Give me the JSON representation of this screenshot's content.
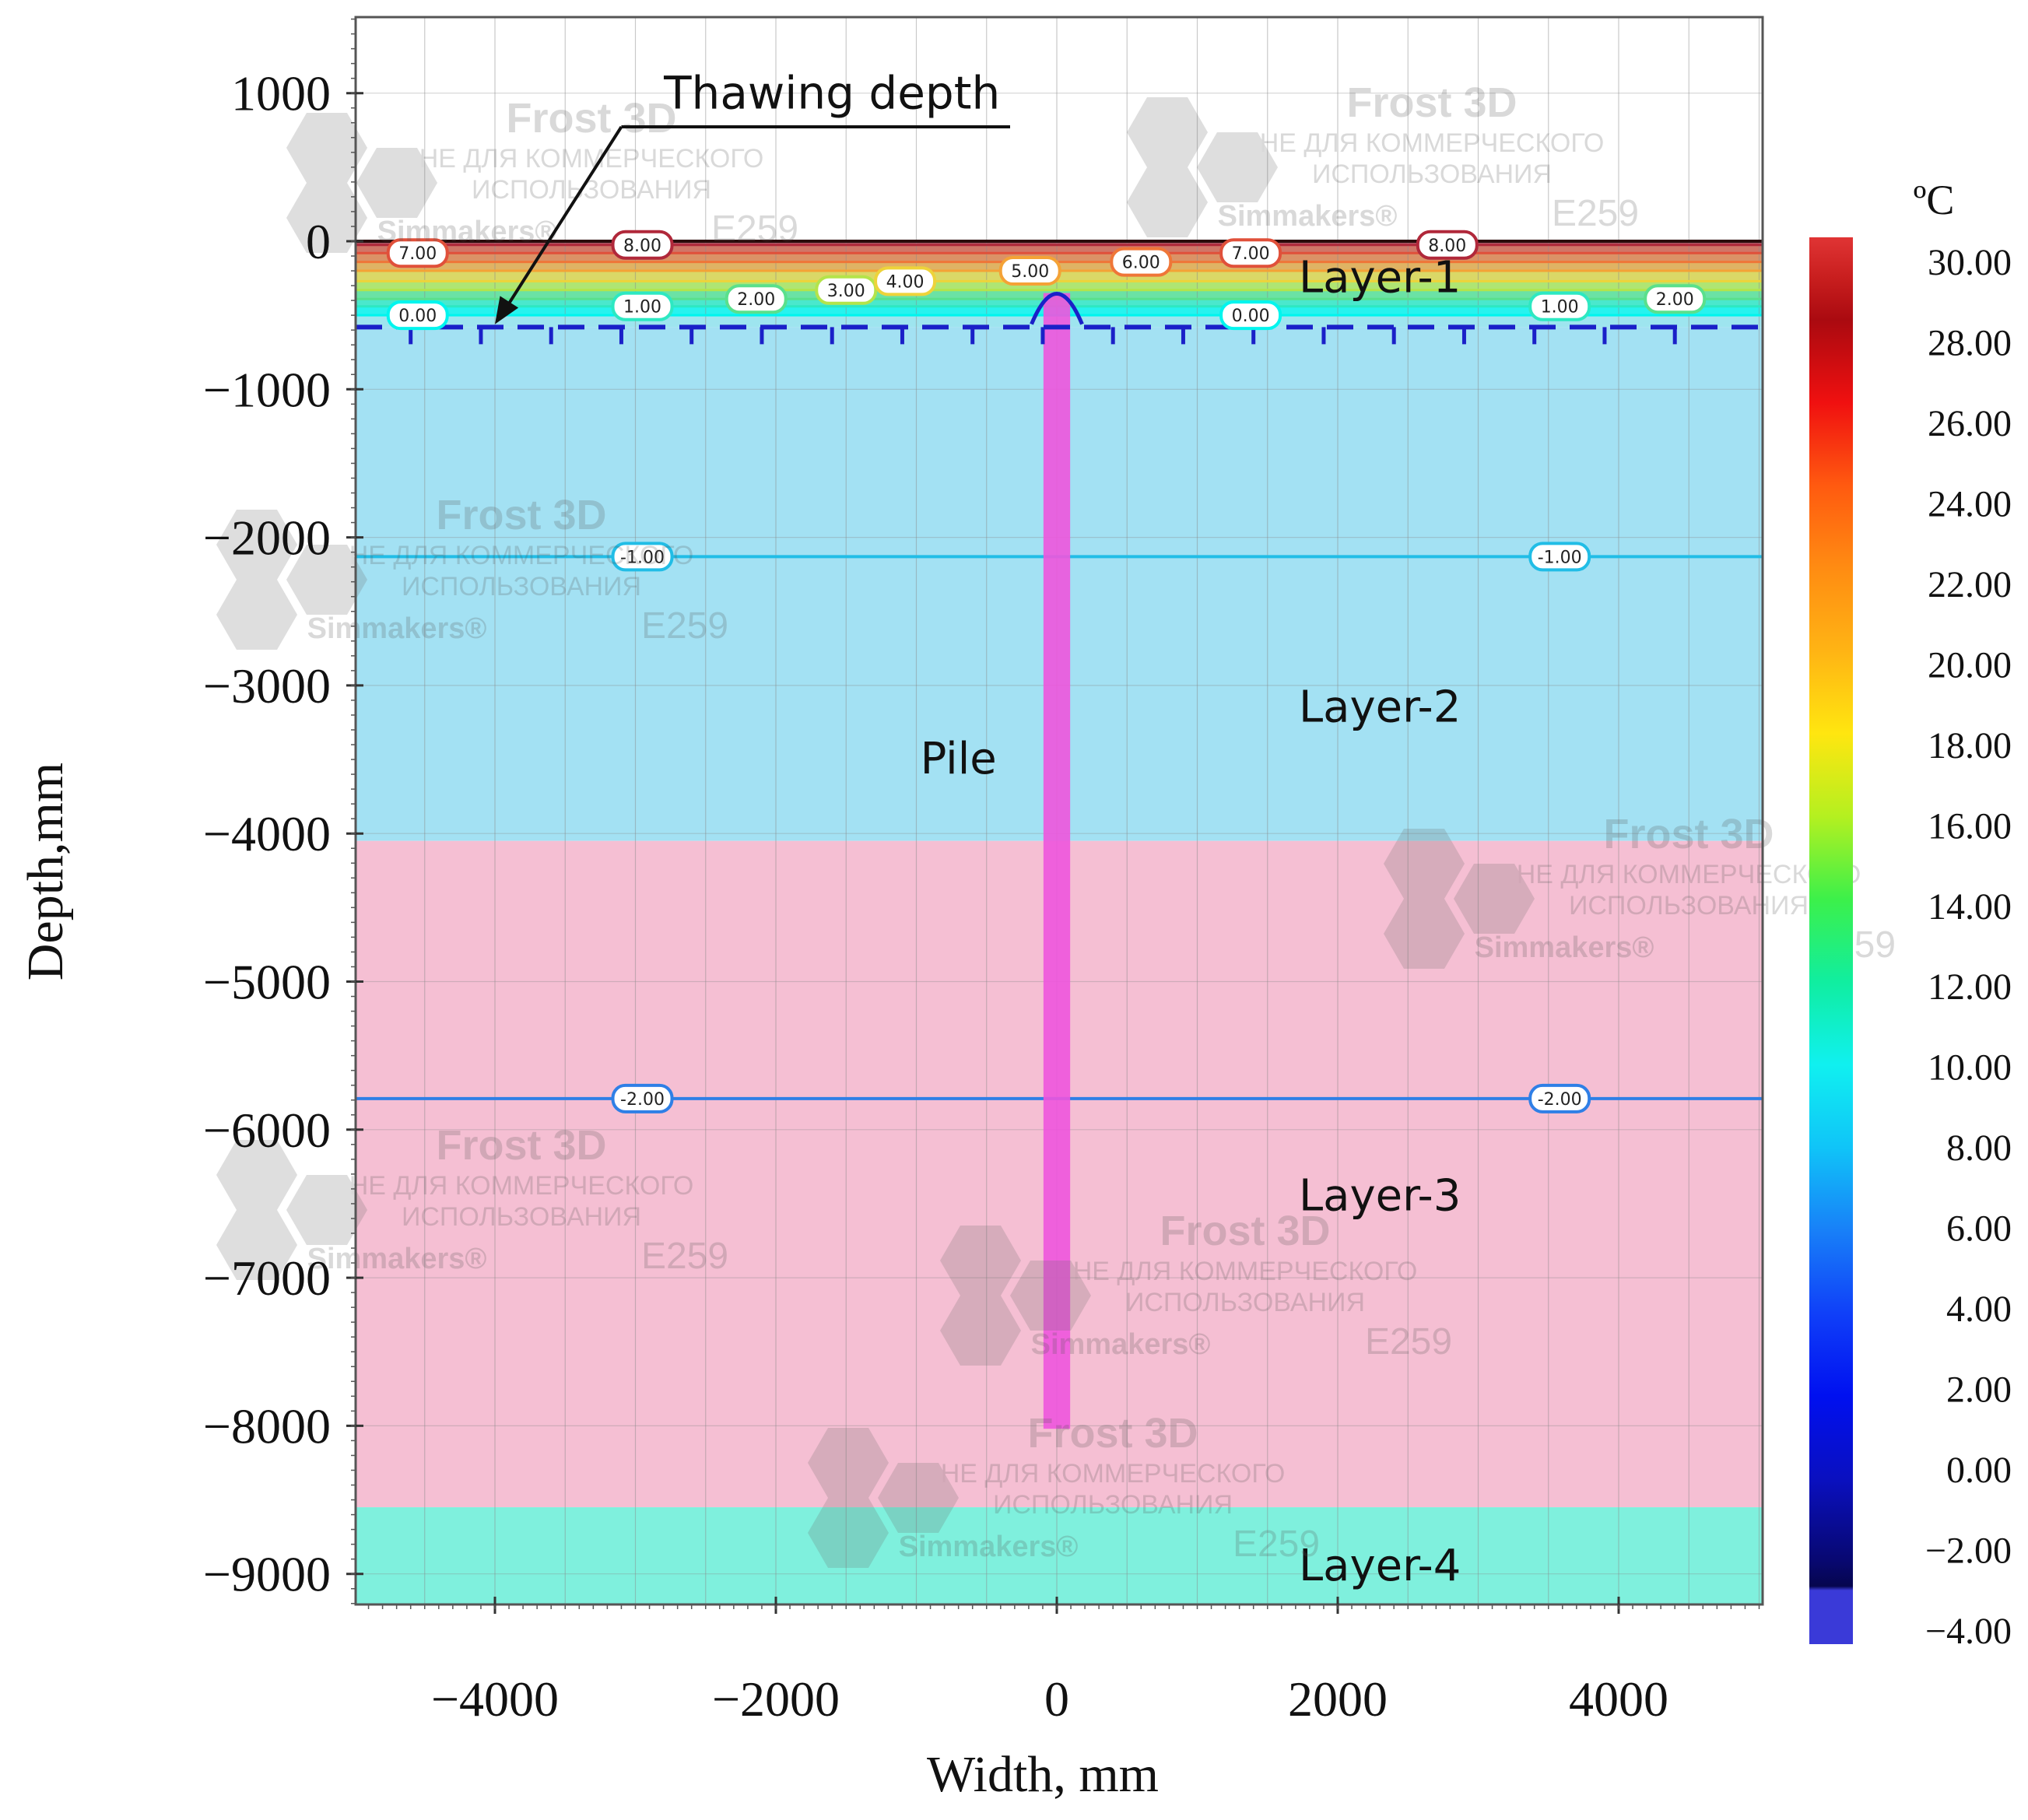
{
  "chart_data": {
    "type": "heatmap",
    "subtype": "temperature-field cross-section",
    "xlabel": "Width, mm",
    "ylabel": "Depth,mm",
    "xlim": [
      -5000,
      5000
    ],
    "ylim": [
      -9200,
      1500
    ],
    "x_ticks": [
      -4000,
      -2000,
      0,
      2000,
      4000
    ],
    "x_tick_labels": [
      "−4000",
      "−2000",
      "0",
      "2000",
      "4000"
    ],
    "y_ticks": [
      1000,
      0,
      -1000,
      -2000,
      -3000,
      -4000,
      -5000,
      -6000,
      -7000,
      -8000,
      -9000
    ],
    "y_tick_labels": [
      "1000",
      "0",
      "−1000",
      "−2000",
      "−3000",
      "−4000",
      "−5000",
      "−6000",
      "−7000",
      "−8000",
      "−9000"
    ],
    "grid": true,
    "layers": [
      {
        "name": "Layer-1",
        "top": 0,
        "bottom": -580,
        "color": "#9ee5ef",
        "label_x": 2300,
        "label_y": -250
      },
      {
        "name": "Layer-2",
        "top": -580,
        "bottom": -4050,
        "color": "#a3e1f3",
        "label_x": 2300,
        "label_y": -3150
      },
      {
        "name": "Layer-3",
        "top": -4050,
        "bottom": -8550,
        "color": "#f5bfd3",
        "label_x": 2300,
        "label_y": -6450
      },
      {
        "name": "Layer-4",
        "top": -8550,
        "bottom": -9200,
        "color": "#7ff0dd",
        "label_x": 2300,
        "label_y": -8950
      }
    ],
    "pile": {
      "label": "Pile",
      "x": 0,
      "width": 190,
      "top": -350,
      "bottom": -8020,
      "color": "#ee55dd",
      "label_x": -700,
      "label_y": -3500
    },
    "thawing_depth": {
      "label": "Thawing depth",
      "depth": -580,
      "color": "#1a20c8",
      "annotation_x": -1600,
      "annotation_y": 1000,
      "arrow_to_x": -4000,
      "arrow_to_y": -560
    },
    "isotherms": [
      {
        "value": -2.0,
        "depth": -5790,
        "color": "#2f7fe6",
        "labels": [
          {
            "text": "-2.00",
            "x": -2950
          },
          {
            "text": "-2.00",
            "x": 3580
          }
        ]
      },
      {
        "value": -1.0,
        "depth": -2130,
        "color": "#21bde6",
        "labels": [
          {
            "text": "-1.00",
            "x": -2950
          },
          {
            "text": "-1.00",
            "x": 3580
          }
        ]
      },
      {
        "value": 0.0,
        "depth": -500,
        "color": "#00f5ee",
        "labels": [
          {
            "text": "0.00",
            "x": -4550
          },
          {
            "text": "0.00",
            "x": 1380
          }
        ]
      },
      {
        "value": 1.0,
        "depth": -440,
        "color": "#2de8c2",
        "labels": [
          {
            "text": "1.00",
            "x": -2950
          },
          {
            "text": "1.00",
            "x": 3580
          }
        ]
      },
      {
        "value": 2.0,
        "depth": -390,
        "color": "#5ae08c",
        "labels": [
          {
            "text": "2.00",
            "x": -2140
          },
          {
            "text": "2.00",
            "x": 4400
          }
        ]
      },
      {
        "value": 3.0,
        "depth": -330,
        "color": "#b4e44a",
        "labels": [
          {
            "text": "3.00",
            "x": -1500
          }
        ]
      },
      {
        "value": 4.0,
        "depth": -270,
        "color": "#eed33a",
        "labels": [
          {
            "text": "4.00",
            "x": -1080
          }
        ]
      },
      {
        "value": 5.0,
        "depth": -200,
        "color": "#f4a236",
        "labels": [
          {
            "text": "5.00",
            "x": -190
          }
        ]
      },
      {
        "value": 6.0,
        "depth": -140,
        "color": "#ef7638",
        "labels": [
          {
            "text": "6.00",
            "x": 600
          }
        ]
      },
      {
        "value": 7.0,
        "depth": -80,
        "color": "#e0503a",
        "labels": [
          {
            "text": "7.00",
            "x": -4550
          },
          {
            "text": "7.00",
            "x": 1380
          }
        ]
      },
      {
        "value": 8.0,
        "depth": -25,
        "color": "#b0283a",
        "labels": [
          {
            "text": "8.00",
            "x": -2950
          },
          {
            "text": "8.00",
            "x": 2780
          }
        ]
      }
    ],
    "colorbar": {
      "unit": "ºC",
      "min": -4.0,
      "max": 30.0,
      "tick_labels": [
        "30.00",
        "28.00",
        "26.00",
        "24.00",
        "22.00",
        "20.00",
        "18.00",
        "16.00",
        "14.00",
        "12.00",
        "10.00",
        "8.00",
        "6.00",
        "4.00",
        "2.00",
        "0.00",
        "−2.00",
        "−4.00"
      ],
      "stops": [
        {
          "v": 30,
          "c": "#e03434"
        },
        {
          "v": 29,
          "c": "#c81e1e"
        },
        {
          "v": 28,
          "c": "#aa0a10"
        },
        {
          "v": 26,
          "c": "#f01010"
        },
        {
          "v": 24,
          "c": "#ff5a10"
        },
        {
          "v": 22,
          "c": "#ff8c12"
        },
        {
          "v": 20,
          "c": "#ffb414"
        },
        {
          "v": 18,
          "c": "#ffe610"
        },
        {
          "v": 16,
          "c": "#b4f020"
        },
        {
          "v": 14,
          "c": "#3cf04a"
        },
        {
          "v": 12,
          "c": "#10eea0"
        },
        {
          "v": 10,
          "c": "#10f0f0"
        },
        {
          "v": 8,
          "c": "#10c4f8"
        },
        {
          "v": 6,
          "c": "#1880f8"
        },
        {
          "v": 4,
          "c": "#1040f8"
        },
        {
          "v": 2,
          "c": "#0010f0"
        },
        {
          "v": 0,
          "c": "#0a10c0"
        },
        {
          "v": -2,
          "c": "#080870"
        },
        {
          "v": -2.6,
          "c": "#06064e"
        },
        {
          "v": -2.7,
          "c": "#3a3ad8"
        },
        {
          "v": -4,
          "c": "#3a3ad8"
        }
      ]
    }
  },
  "watermarks": [
    {
      "title": "Frost 3D",
      "line1": "НЕ ДЛЯ КОММЕРЧЕСКОГО",
      "line2": "ИСПОЛЬЗОВАНИЯ",
      "brand": "Simmakers®",
      "code": "E259"
    }
  ]
}
